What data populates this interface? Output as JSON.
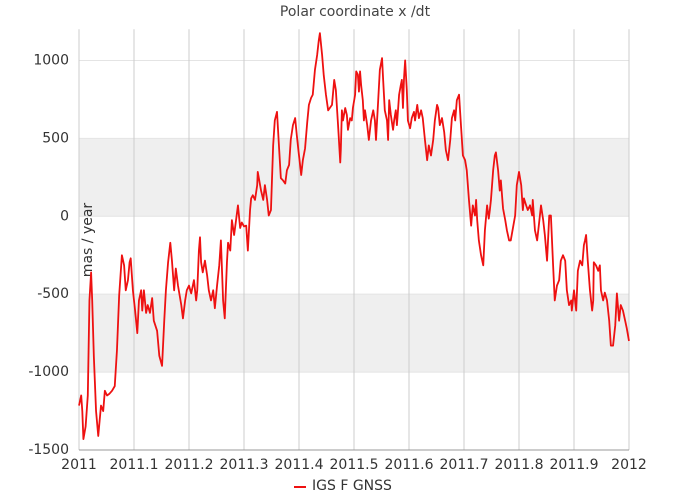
{
  "chart_data": {
    "type": "line",
    "title": "Polar coordinate x /dt",
    "ylabel": "mas / year",
    "xlim": [
      2011,
      2012
    ],
    "xticks": [
      2011,
      2011.1,
      2011.2,
      2011.3,
      2011.4,
      2011.5,
      2011.6,
      2011.7,
      2011.8,
      2011.9,
      2012
    ],
    "ylim": [
      -1500,
      1200
    ],
    "yticks": [
      -1500,
      -1000,
      -500,
      0,
      500,
      1000
    ],
    "grid": true,
    "legend": "bottom",
    "x": [
      2011.0,
      2011.004,
      2011.006,
      2011.008,
      2011.012,
      2011.016,
      2011.019,
      2011.022,
      2011.024,
      2011.027,
      2011.031,
      2011.035,
      2011.04,
      2011.044,
      2011.047,
      2011.051,
      2011.055,
      2011.06,
      2011.065,
      2011.069,
      2011.073,
      2011.078,
      2011.082,
      2011.085,
      2011.089,
      2011.092,
      2011.094,
      2011.098,
      2011.102,
      2011.106,
      2011.109,
      2011.113,
      2011.115,
      2011.118,
      2011.122,
      2011.125,
      2011.129,
      2011.133,
      2011.136,
      2011.142,
      2011.146,
      2011.151,
      2011.155,
      2011.158,
      2011.162,
      2011.166,
      2011.169,
      2011.173,
      2011.176,
      2011.18,
      2011.186,
      2011.189,
      2011.193,
      2011.196,
      2011.2,
      2011.204,
      2011.209,
      2011.213,
      2011.215,
      2011.218,
      2011.22,
      2011.222,
      2011.225,
      2011.229,
      2011.233,
      2011.236,
      2011.24,
      2011.244,
      2011.247,
      2011.251,
      2011.255,
      2011.258,
      2011.262,
      2011.265,
      2011.269,
      2011.271,
      2011.275,
      2011.278,
      2011.282,
      2011.285,
      2011.289,
      2011.293,
      2011.296,
      2011.3,
      2011.304,
      2011.307,
      2011.311,
      2011.313,
      2011.316,
      2011.32,
      2011.324,
      2011.325,
      2011.331,
      2011.335,
      2011.338,
      2011.342,
      2011.345,
      2011.349,
      2011.353,
      2011.356,
      2011.36,
      2011.364,
      2011.367,
      2011.371,
      2011.375,
      2011.378,
      2011.382,
      2011.385,
      2011.389,
      2011.393,
      2011.396,
      2011.4,
      2011.404,
      2011.407,
      2011.411,
      2011.415,
      2011.418,
      2011.422,
      2011.425,
      2011.429,
      2011.433,
      2011.436,
      2011.438,
      2011.442,
      2011.445,
      2011.449,
      2011.453,
      2011.456,
      2011.46,
      2011.464,
      2011.467,
      2011.471,
      2011.475,
      2011.476,
      2011.478,
      2011.48,
      2011.484,
      2011.487,
      2011.489,
      2011.493,
      2011.496,
      2011.498,
      2011.502,
      2011.504,
      2011.507,
      2011.509,
      2011.511,
      2011.513,
      2011.516,
      2011.518,
      2011.52,
      2011.524,
      2011.527,
      2011.531,
      2011.535,
      2011.538,
      2011.54,
      2011.544,
      2011.547,
      2011.551,
      2011.553,
      2011.556,
      2011.56,
      2011.562,
      2011.564,
      2011.567,
      2011.571,
      2011.573,
      2011.576,
      2011.578,
      2011.58,
      2011.582,
      2011.585,
      2011.587,
      2011.589,
      2011.591,
      2011.593,
      2011.596,
      2011.598,
      2011.602,
      2011.605,
      2011.609,
      2011.611,
      2011.615,
      2011.618,
      2011.622,
      2011.625,
      2011.629,
      2011.633,
      2011.636,
      2011.64,
      2011.644,
      2011.647,
      2011.651,
      2011.653,
      2011.656,
      2011.66,
      2011.664,
      2011.667,
      2011.671,
      2011.675,
      2011.678,
      2011.682,
      2011.684,
      2011.687,
      2011.691,
      2011.695,
      2011.698,
      2011.702,
      2011.705,
      2011.709,
      2011.713,
      2011.716,
      2011.72,
      2011.722,
      2011.724,
      2011.727,
      2011.731,
      2011.735,
      2011.738,
      2011.742,
      2011.745,
      2011.747,
      2011.749,
      2011.753,
      2011.756,
      2011.758,
      2011.762,
      2011.765,
      2011.767,
      2011.771,
      2011.775,
      2011.778,
      2011.782,
      2011.785,
      2011.789,
      2011.793,
      2011.796,
      2011.8,
      2011.804,
      2011.807,
      2011.809,
      2011.813,
      2011.816,
      2011.82,
      2011.824,
      2011.825,
      2011.829,
      2011.833,
      2011.836,
      2011.84,
      2011.844,
      2011.847,
      2011.851,
      2011.855,
      2011.858,
      2011.862,
      2011.865,
      2011.869,
      2011.873,
      2011.876,
      2011.88,
      2011.884,
      2011.887,
      2011.891,
      2011.895,
      2011.896,
      2011.9,
      2011.904,
      2011.907,
      2011.911,
      2011.915,
      2011.918,
      2011.92,
      2011.922,
      2011.925,
      2011.929,
      2011.933,
      2011.935,
      2011.936,
      2011.94,
      2011.944,
      2011.947,
      2011.949,
      2011.953,
      2011.956,
      2011.96,
      2011.964,
      2011.967,
      2011.971,
      2011.975,
      2011.978,
      2011.982,
      2011.985,
      2011.989,
      2011.993,
      2011.996,
      2012.0
    ],
    "series": [
      {
        "name": "IGS F GNSS",
        "color": "#ee1111",
        "values": [
          -1215,
          -1150,
          -1250,
          -1430,
          -1350,
          -1150,
          -540,
          -360,
          -540,
          -900,
          -1250,
          -1410,
          -1215,
          -1250,
          -1120,
          -1150,
          -1140,
          -1120,
          -1090,
          -860,
          -510,
          -250,
          -315,
          -475,
          -410,
          -295,
          -270,
          -475,
          -605,
          -750,
          -540,
          -475,
          -605,
          -475,
          -620,
          -570,
          -620,
          -525,
          -670,
          -735,
          -895,
          -960,
          -670,
          -475,
          -295,
          -170,
          -285,
          -475,
          -335,
          -445,
          -570,
          -655,
          -540,
          -475,
          -445,
          -495,
          -410,
          -540,
          -475,
          -220,
          -135,
          -295,
          -360,
          -285,
          -380,
          -475,
          -540,
          -475,
          -590,
          -445,
          -315,
          -155,
          -540,
          -655,
          -295,
          -170,
          -220,
          -25,
          -120,
          -40,
          70,
          -75,
          -40,
          -65,
          -60,
          -220,
          40,
          115,
          135,
          105,
          200,
          285,
          165,
          105,
          200,
          105,
          5,
          40,
          455,
          615,
          670,
          425,
          245,
          230,
          210,
          295,
          330,
          490,
          585,
          630,
          520,
          390,
          265,
          360,
          435,
          605,
          715,
          760,
          780,
          940,
          1035,
          1130,
          1175,
          1035,
          905,
          780,
          680,
          695,
          715,
          875,
          810,
          585,
          345,
          425,
          680,
          615,
          695,
          650,
          555,
          630,
          615,
          695,
          780,
          930,
          910,
          800,
          930,
          840,
          745,
          615,
          680,
          585,
          490,
          615,
          680,
          615,
          490,
          745,
          940,
          1015,
          875,
          680,
          615,
          490,
          745,
          650,
          555,
          615,
          680,
          585,
          680,
          780,
          840,
          875,
          695,
          890,
          1000,
          810,
          615,
          565,
          630,
          670,
          615,
          715,
          630,
          680,
          630,
          490,
          360,
          455,
          390,
          490,
          615,
          715,
          695,
          585,
          630,
          540,
          425,
          360,
          490,
          630,
          680,
          615,
          745,
          780,
          555,
          390,
          360,
          295,
          105,
          -60,
          70,
          5,
          105,
          -25,
          -155,
          -250,
          -315,
          -90,
          70,
          -15,
          40,
          105,
          295,
          390,
          410,
          295,
          165,
          230,
          50,
          -25,
          -90,
          -155,
          -155,
          -75,
          5,
          200,
          285,
          200,
          40,
          115,
          70,
          40,
          70,
          5,
          105,
          -90,
          -155,
          -60,
          70,
          -25,
          -120,
          -285,
          5,
          5,
          -315,
          -540,
          -445,
          -410,
          -285,
          -250,
          -285,
          -475,
          -570,
          -540,
          -605,
          -475,
          -605,
          -350,
          -285,
          -315,
          -185,
          -155,
          -120,
          -285,
          -475,
          -605,
          -540,
          -295,
          -315,
          -350,
          -315,
          -475,
          -540,
          -490,
          -540,
          -670,
          -830,
          -830,
          -700,
          -495,
          -670,
          -570,
          -605,
          -670,
          -720,
          -800
        ]
      }
    ]
  }
}
